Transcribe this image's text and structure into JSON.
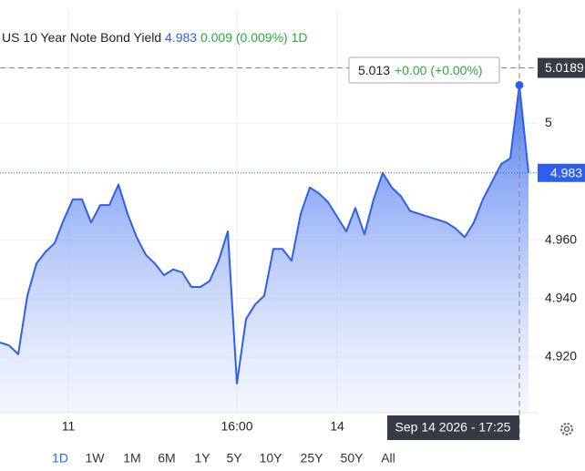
{
  "chart_data": {
    "type": "area",
    "title": "US 10 Year Note Bond Yield",
    "last_value": 4.983,
    "change": "0.009 (0.009%)",
    "period": "1D",
    "line_color": "#2f5fe8",
    "values": [
      4.925,
      4.924,
      4.921,
      4.941,
      4.952,
      4.956,
      4.959,
      4.967,
      4.974,
      4.974,
      4.966,
      4.972,
      4.972,
      4.979,
      4.969,
      4.961,
      4.955,
      4.952,
      4.948,
      4.95,
      4.949,
      4.944,
      4.944,
      4.946,
      4.953,
      4.963,
      4.911,
      4.933,
      4.938,
      4.941,
      4.957,
      4.957,
      4.953,
      4.969,
      4.978,
      4.976,
      4.973,
      4.968,
      4.963,
      4.971,
      4.962,
      4.974,
      4.983,
      4.978,
      4.975,
      4.97,
      4.969,
      4.968,
      4.967,
      4.966,
      4.964,
      4.961,
      4.966,
      4.974,
      4.98,
      4.986,
      4.988,
      5.013,
      4.983
    ],
    "ylim": [
      4.901,
      5.039
    ],
    "yticks": [
      {
        "value": 4.92,
        "label": "4.920"
      },
      {
        "value": 4.94,
        "label": "4.940"
      },
      {
        "value": 4.96,
        "label": "4.960"
      },
      5
    ],
    "xticks": [
      {
        "value": 7.5,
        "label": "11"
      },
      {
        "value": 26,
        "label": "16:00"
      },
      {
        "value": 37,
        "label": "14"
      }
    ],
    "crosshair": {
      "index": 57,
      "price": 5.0189,
      "time": "Sep 14 2026 - 17:25",
      "change": "+0.00 (+0.00%)"
    },
    "ranges": [
      "1D",
      "1W",
      "1M",
      "6M",
      "1Y",
      "5Y",
      "10Y",
      "25Y",
      "50Y",
      "All"
    ],
    "selected_range": 0
  }
}
